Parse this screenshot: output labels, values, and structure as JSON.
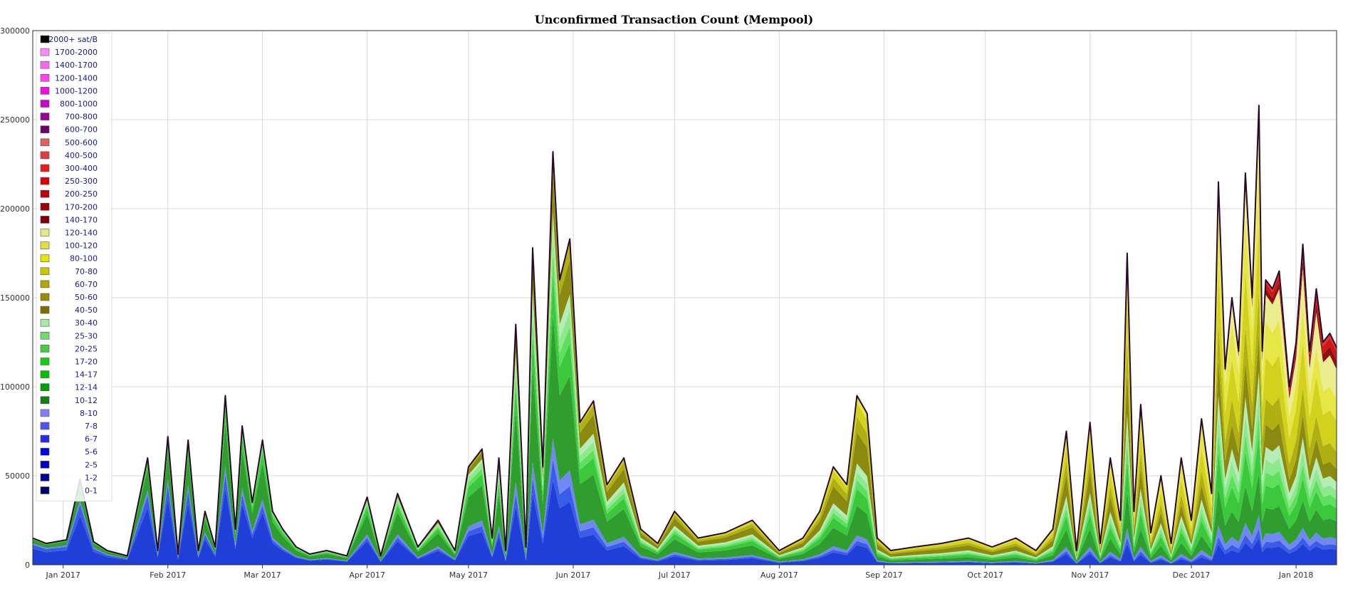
{
  "chart_data": {
    "type": "area",
    "stacked": true,
    "title": "Unconfirmed Transaction Count (Mempool)",
    "xlabel": "",
    "ylabel": "",
    "ylim": [
      0,
      300000
    ],
    "y_ticks": [
      0,
      50000,
      100000,
      150000,
      200000,
      250000,
      300000
    ],
    "y_tick_labels": [
      "0",
      "50000",
      "100000",
      "150000",
      "200000",
      "250000",
      "300000"
    ],
    "x_range": [
      "2016-12-23",
      "2018-01-13"
    ],
    "x_ticks": [
      {
        "date": "2017-01-01",
        "label": "Jan 2017"
      },
      {
        "date": "2017-02-01",
        "label": "Feb 2017"
      },
      {
        "date": "2017-03-01",
        "label": "Mar 2017"
      },
      {
        "date": "2017-04-01",
        "label": "Apr 2017"
      },
      {
        "date": "2017-05-01",
        "label": "May 2017"
      },
      {
        "date": "2017-06-01",
        "label": "Jun 2017"
      },
      {
        "date": "2017-07-01",
        "label": "Jul 2017"
      },
      {
        "date": "2017-08-01",
        "label": "Aug 2017"
      },
      {
        "date": "2017-09-01",
        "label": "Sep 2017"
      },
      {
        "date": "2017-10-01",
        "label": "Oct 2017"
      },
      {
        "date": "2017-11-01",
        "label": "Nov 2017"
      },
      {
        "date": "2017-12-01",
        "label": "Dec 2017"
      },
      {
        "date": "2018-01-01",
        "label": "Jan 2018"
      }
    ],
    "grid": true,
    "legend_position": "top-left",
    "total_line_color": "#2a0a2a",
    "groups": [
      {
        "name": "0-1",
        "color": "#1f3fd6"
      },
      {
        "name": "1-2",
        "color": "#3a5ce8"
      },
      {
        "name": "2-5",
        "color": "#6f88f2"
      },
      {
        "name": "5-6",
        "color": "#2f9e2f"
      },
      {
        "name": "6-7",
        "color": "#3cc83c"
      },
      {
        "name": "7-8",
        "color": "#5ee05e"
      },
      {
        "name": "8-10",
        "color": "#8ee88e"
      },
      {
        "name": "10-12",
        "color": "#b6ecb6"
      },
      {
        "name": "12-14",
        "color": "#8a8a10"
      },
      {
        "name": "14-17",
        "color": "#b0b014"
      },
      {
        "name": "17-20",
        "color": "#d2d21e"
      },
      {
        "name": "20-25",
        "color": "#e6e644"
      },
      {
        "name": "25-30",
        "color": "#ecec90"
      },
      {
        "name": "30-40",
        "color": "#8c1010"
      },
      {
        "name": "40-50",
        "color": "#cc1818"
      },
      {
        "name": "50-60",
        "color": "#e83232"
      },
      {
        "name": "60-70",
        "color": "#b0108c"
      },
      {
        "name": "70-80",
        "color": "#ff55ff"
      }
    ],
    "legend": [
      {
        "name": "2000+ sat/B",
        "color": "#000000"
      },
      {
        "name": "1700-2000",
        "color": "#ff88ff"
      },
      {
        "name": "1400-1700",
        "color": "#ff66ee"
      },
      {
        "name": "1200-1400",
        "color": "#ff44ee"
      },
      {
        "name": "1000-1200",
        "color": "#ee11dd"
      },
      {
        "name": "800-1000",
        "color": "#cc00cc"
      },
      {
        "name": "700-800",
        "color": "#9a0099"
      },
      {
        "name": "600-700",
        "color": "#6e006e"
      },
      {
        "name": "500-600",
        "color": "#e06060"
      },
      {
        "name": "400-500",
        "color": "#e23c3c"
      },
      {
        "name": "300-400",
        "color": "#e81c1c"
      },
      {
        "name": "250-300",
        "color": "#dd0000"
      },
      {
        "name": "200-250",
        "color": "#c00000"
      },
      {
        "name": "170-200",
        "color": "#a00000"
      },
      {
        "name": "140-170",
        "color": "#7e0000"
      },
      {
        "name": "120-140",
        "color": "#e8e888"
      },
      {
        "name": "100-120",
        "color": "#e0e040"
      },
      {
        "name": "80-100",
        "color": "#e6e600"
      },
      {
        "name": "70-80",
        "color": "#c8c800"
      },
      {
        "name": "60-70",
        "color": "#b0a800"
      },
      {
        "name": "50-60",
        "color": "#968c00"
      },
      {
        "name": "40-50",
        "color": "#7a7000"
      },
      {
        "name": "30-40",
        "color": "#a8e8a8"
      },
      {
        "name": "25-30",
        "color": "#70dc70"
      },
      {
        "name": "20-25",
        "color": "#40d040"
      },
      {
        "name": "17-20",
        "color": "#10d010"
      },
      {
        "name": "14-17",
        "color": "#00c000"
      },
      {
        "name": "12-14",
        "color": "#00a000"
      },
      {
        "name": "10-12",
        "color": "#108010"
      },
      {
        "name": "8-10",
        "color": "#8080ff"
      },
      {
        "name": "7-8",
        "color": "#5050ff"
      },
      {
        "name": "6-7",
        "color": "#2828f0"
      },
      {
        "name": "5-6",
        "color": "#0000ee"
      },
      {
        "name": "2-5",
        "color": "#0000cc"
      },
      {
        "name": "1-2",
        "color": "#000099"
      },
      {
        "name": "0-1",
        "color": "#000066"
      }
    ],
    "series_dates": [
      "2016-12-23",
      "2016-12-27",
      "2017-01-02",
      "2017-01-06",
      "2017-01-10",
      "2017-01-14",
      "2017-01-20",
      "2017-01-26",
      "2017-01-29",
      "2017-02-01",
      "2017-02-04",
      "2017-02-07",
      "2017-02-10",
      "2017-02-12",
      "2017-02-15",
      "2017-02-18",
      "2017-02-21",
      "2017-02-23",
      "2017-02-26",
      "2017-03-01",
      "2017-03-04",
      "2017-03-07",
      "2017-03-11",
      "2017-03-15",
      "2017-03-20",
      "2017-03-26",
      "2017-04-01",
      "2017-04-05",
      "2017-04-10",
      "2017-04-16",
      "2017-04-22",
      "2017-04-27",
      "2017-05-01",
      "2017-05-05",
      "2017-05-08",
      "2017-05-10",
      "2017-05-12",
      "2017-05-15",
      "2017-05-18",
      "2017-05-20",
      "2017-05-23",
      "2017-05-26",
      "2017-05-28",
      "2017-05-31",
      "2017-06-03",
      "2017-06-07",
      "2017-06-11",
      "2017-06-16",
      "2017-06-21",
      "2017-06-26",
      "2017-07-01",
      "2017-07-08",
      "2017-07-16",
      "2017-07-24",
      "2017-08-01",
      "2017-08-08",
      "2017-08-13",
      "2017-08-17",
      "2017-08-21",
      "2017-08-24",
      "2017-08-27",
      "2017-08-30",
      "2017-09-03",
      "2017-09-10",
      "2017-09-18",
      "2017-09-26",
      "2017-10-03",
      "2017-10-10",
      "2017-10-16",
      "2017-10-21",
      "2017-10-25",
      "2017-10-28",
      "2017-11-01",
      "2017-11-04",
      "2017-11-07",
      "2017-11-10",
      "2017-11-12",
      "2017-11-14",
      "2017-11-16",
      "2017-11-19",
      "2017-11-22",
      "2017-11-25",
      "2017-11-28",
      "2017-12-01",
      "2017-12-04",
      "2017-12-07",
      "2017-12-09",
      "2017-12-11",
      "2017-12-13",
      "2017-12-15",
      "2017-12-17",
      "2017-12-19",
      "2017-12-21",
      "2017-12-22",
      "2017-12-23",
      "2017-12-25",
      "2017-12-27",
      "2017-12-30",
      "2018-01-01",
      "2018-01-03",
      "2018-01-05",
      "2018-01-07",
      "2018-01-09",
      "2018-01-11",
      "2018-01-13"
    ],
    "series_totals": [
      15000,
      12000,
      14000,
      48000,
      13000,
      8000,
      5000,
      60000,
      8000,
      72000,
      6000,
      70000,
      8000,
      30000,
      10000,
      95000,
      20000,
      78000,
      35000,
      70000,
      30000,
      20000,
      10000,
      6000,
      8000,
      5000,
      38000,
      5000,
      40000,
      10000,
      25000,
      8000,
      55000,
      65000,
      15000,
      60000,
      8000,
      135000,
      10000,
      178000,
      55000,
      232000,
      160000,
      183000,
      80000,
      92000,
      45000,
      60000,
      20000,
      12000,
      30000,
      15000,
      18000,
      25000,
      8000,
      15000,
      30000,
      55000,
      45000,
      95000,
      85000,
      15000,
      8000,
      10000,
      12000,
      15000,
      10000,
      15000,
      8000,
      20000,
      75000,
      8000,
      80000,
      12000,
      60000,
      25000,
      175000,
      30000,
      90000,
      18000,
      50000,
      12000,
      60000,
      25000,
      82000,
      40000,
      215000,
      110000,
      150000,
      120000,
      220000,
      150000,
      258000,
      120000,
      160000,
      155000,
      165000,
      100000,
      125000,
      180000,
      120000,
      155000,
      125000,
      130000,
      122000
    ],
    "series_shares": [
      [
        0.6,
        0.15,
        0.05,
        0.15,
        0.05,
        0,
        0,
        0,
        0,
        0,
        0,
        0,
        0,
        0,
        0,
        0,
        0,
        0
      ],
      [
        0.4,
        0.05,
        0.05,
        0.3,
        0.1,
        0.05,
        0.05,
        0,
        0,
        0,
        0,
        0,
        0,
        0,
        0,
        0,
        0,
        0
      ],
      [
        0.2,
        0.05,
        0.05,
        0.3,
        0.1,
        0.05,
        0.05,
        0.05,
        0.1,
        0.05,
        0,
        0,
        0,
        0,
        0,
        0,
        0,
        0
      ],
      [
        0.1,
        0.02,
        0.03,
        0.15,
        0.1,
        0.05,
        0.05,
        0.05,
        0.2,
        0.1,
        0.1,
        0.05,
        0,
        0,
        0,
        0,
        0,
        0
      ],
      [
        0.05,
        0.02,
        0.03,
        0.1,
        0.1,
        0.05,
        0.05,
        0.05,
        0.1,
        0.1,
        0.15,
        0.15,
        0.05,
        0,
        0,
        0,
        0,
        0
      ],
      [
        0.07,
        0.02,
        0.03,
        0.08,
        0.06,
        0.04,
        0.04,
        0.04,
        0.06,
        0.08,
        0.14,
        0.1,
        0.14,
        0.04,
        0.04,
        0.02,
        0,
        0
      ]
    ]
  }
}
